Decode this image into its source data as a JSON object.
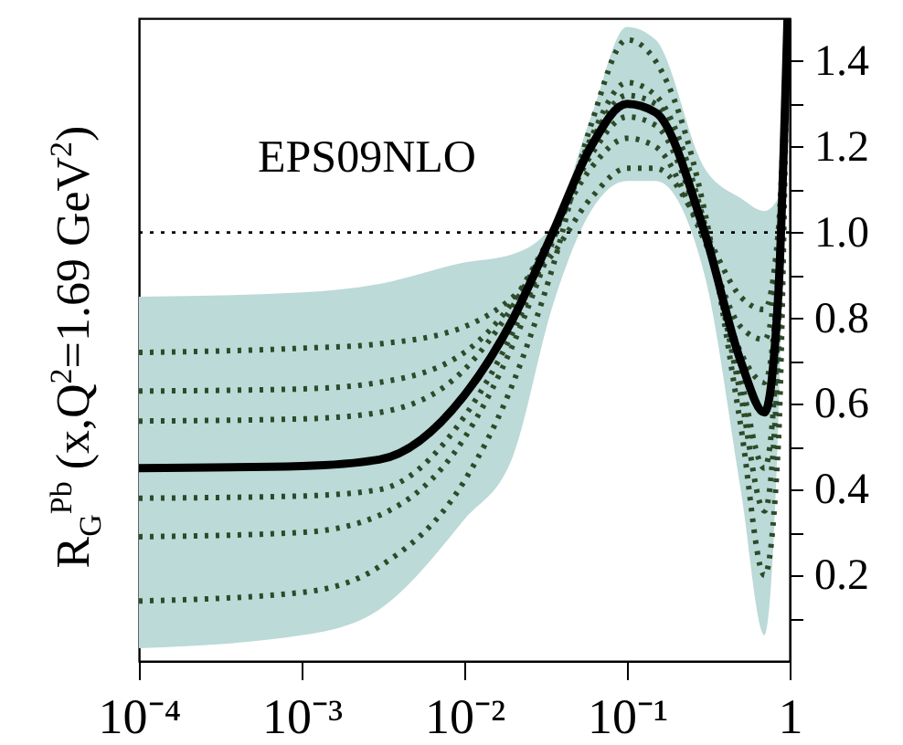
{
  "chart_data": {
    "type": "line",
    "ylabel": "R$_{G}$$^{Pb}$ (x,Q$^{2}$=1.69 GeV$^{2}$)",
    "annotations": [
      "EPS09NLO"
    ],
    "log": "x",
    "grid": false,
    "x": [
      0.0001,
      0.001,
      0.003,
      0.01,
      0.02,
      0.035,
      0.06,
      0.1,
      0.15,
      0.3,
      0.5,
      0.7,
      0.85,
      0.97
    ],
    "xlim": [
      0.0001,
      1
    ],
    "xticks": [
      {
        "value": 0.0001,
        "label": "10⁻⁴"
      },
      {
        "value": 0.001,
        "label": "10⁻³"
      },
      {
        "value": 0.01,
        "label": "10⁻²"
      },
      {
        "value": 0.1,
        "label": "10⁻¹"
      },
      1
    ],
    "ylim": [
      0,
      1.5
    ],
    "yticks": [
      {
        "value": 0.1,
        "label": null
      },
      0.2,
      {
        "value": 0.3,
        "label": null
      },
      0.4,
      {
        "value": 0.5,
        "label": null
      },
      0.6,
      {
        "value": 0.7,
        "label": null
      },
      0.8,
      {
        "value": 0.9,
        "label": null
      },
      {
        "value": 1,
        "label": "1.0"
      },
      {
        "value": 1.1,
        "label": null
      },
      1.2,
      {
        "value": 1.3,
        "label": null
      },
      1.4
    ],
    "ref_lines": [
      {
        "axis": "y",
        "value": 1,
        "color": "#000000",
        "line_style": "dotted"
      }
    ],
    "series": [
      {
        "color": "#2d4a2a",
        "line_style": "dotted",
        "values": [
          0.72,
          0.73,
          0.74,
          0.78,
          0.85,
          0.95,
          1.08,
          1.15,
          1.15,
          1.0,
          0.85,
          0.82,
          1.0,
          1.5
        ]
      },
      {
        "color": "#2d4a2a",
        "line_style": "dotted",
        "values": [
          0.63,
          0.635,
          0.65,
          0.72,
          0.84,
          1.0,
          1.15,
          1.22,
          1.2,
          0.98,
          0.78,
          0.75,
          0.95,
          1.5
        ]
      },
      {
        "color": "#2d4a2a",
        "line_style": "dotted",
        "values": [
          0.56,
          0.565,
          0.58,
          0.68,
          0.83,
          1.0,
          1.18,
          1.27,
          1.25,
          0.99,
          0.72,
          0.65,
          0.9,
          1.5
        ]
      },
      {
        "color": "#2d4a2a",
        "line_style": "dotted",
        "values": [
          0.38,
          0.385,
          0.4,
          0.57,
          0.77,
          0.99,
          1.21,
          1.32,
          1.3,
          1.01,
          0.66,
          0.45,
          0.78,
          1.5
        ]
      },
      {
        "color": "#2d4a2a",
        "line_style": "dotted",
        "values": [
          0.29,
          0.3,
          0.34,
          0.52,
          0.74,
          0.98,
          1.22,
          1.35,
          1.32,
          1.02,
          0.62,
          0.35,
          0.7,
          1.5
        ]
      },
      {
        "color": "#2d4a2a",
        "line_style": "dotted",
        "values": [
          0.14,
          0.16,
          0.22,
          0.42,
          0.65,
          0.92,
          1.25,
          1.45,
          1.4,
          1.05,
          0.55,
          0.2,
          0.5,
          1.5
        ]
      },
      {
        "color": "#000000",
        "line_style": "solid",
        "values": [
          0.45,
          0.455,
          0.47,
          0.62,
          0.8,
          1.0,
          1.2,
          1.3,
          1.28,
          1.0,
          0.7,
          0.58,
          0.85,
          1.5
        ],
        "lower": [
          0.03,
          0.06,
          0.12,
          0.33,
          0.48,
          0.83,
          1.05,
          1.12,
          1.12,
          0.9,
          0.4,
          0.06,
          0.55,
          1.5
        ],
        "upper": [
          0.85,
          0.86,
          0.88,
          0.93,
          0.95,
          1.02,
          1.27,
          1.48,
          1.45,
          1.15,
          1.08,
          1.05,
          1.08,
          1.5
        ]
      }
    ]
  }
}
